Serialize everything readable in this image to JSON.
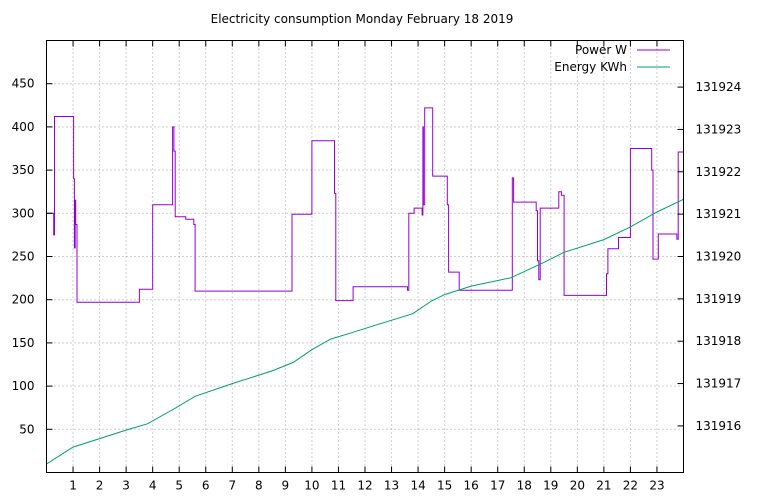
{
  "chart_data": {
    "type": "line",
    "title": "Electricity consumption Monday February 18 2019",
    "xlabel": "",
    "ylabel": "",
    "y2label": "",
    "xlim": [
      0,
      24
    ],
    "ylim": [
      0,
      500
    ],
    "y2lim": [
      131914.9,
      131925.1
    ],
    "x_ticks": [
      1,
      2,
      3,
      4,
      5,
      6,
      7,
      8,
      9,
      10,
      11,
      12,
      13,
      14,
      15,
      16,
      17,
      18,
      19,
      20,
      21,
      22,
      23
    ],
    "y_ticks": [
      50,
      100,
      150,
      200,
      250,
      300,
      350,
      400,
      450
    ],
    "y2_ticks": [
      131916,
      131917,
      131918,
      131919,
      131920,
      131921,
      131922,
      131923,
      131924
    ],
    "grid": true,
    "legend_position": "top-right",
    "series": [
      {
        "name": "Power W",
        "axis": "y",
        "color": "#9400d3",
        "step": true,
        "points": [
          [
            0,
            300
          ],
          [
            0.25,
            300
          ],
          [
            0.27,
            275
          ],
          [
            0.3,
            412
          ],
          [
            1.0,
            412
          ],
          [
            1.02,
            340
          ],
          [
            1.05,
            260
          ],
          [
            1.08,
            315
          ],
          [
            1.1,
            287
          ],
          [
            1.15,
            197
          ],
          [
            3.45,
            197
          ],
          [
            3.5,
            212
          ],
          [
            3.95,
            212
          ],
          [
            4.0,
            310
          ],
          [
            4.7,
            310
          ],
          [
            4.75,
            400
          ],
          [
            4.8,
            372
          ],
          [
            4.85,
            296
          ],
          [
            5.2,
            296
          ],
          [
            5.25,
            293
          ],
          [
            5.5,
            293
          ],
          [
            5.55,
            287
          ],
          [
            5.6,
            210
          ],
          [
            9.15,
            210
          ],
          [
            9.25,
            299
          ],
          [
            9.9,
            299
          ],
          [
            10.0,
            384
          ],
          [
            10.8,
            384
          ],
          [
            10.85,
            323
          ],
          [
            10.9,
            199
          ],
          [
            11.5,
            199
          ],
          [
            11.55,
            215
          ],
          [
            13.55,
            215
          ],
          [
            13.6,
            211
          ],
          [
            13.65,
            300
          ],
          [
            13.8,
            300
          ],
          [
            13.85,
            306
          ],
          [
            14.1,
            306
          ],
          [
            14.15,
            298
          ],
          [
            14.18,
            400
          ],
          [
            14.2,
            310
          ],
          [
            14.25,
            422
          ],
          [
            14.5,
            422
          ],
          [
            14.55,
            343
          ],
          [
            15.05,
            343
          ],
          [
            15.1,
            310
          ],
          [
            15.15,
            232
          ],
          [
            15.5,
            232
          ],
          [
            15.55,
            211
          ],
          [
            17.5,
            211
          ],
          [
            17.55,
            341
          ],
          [
            17.6,
            313
          ],
          [
            18.4,
            313
          ],
          [
            18.45,
            303
          ],
          [
            18.5,
            245
          ],
          [
            18.55,
            223
          ],
          [
            18.6,
            306
          ],
          [
            19.25,
            306
          ],
          [
            19.3,
            325
          ],
          [
            19.4,
            321
          ],
          [
            19.5,
            205
          ],
          [
            21.05,
            205
          ],
          [
            21.1,
            230
          ],
          [
            21.15,
            259
          ],
          [
            21.5,
            259
          ],
          [
            21.55,
            272
          ],
          [
            21.95,
            272
          ],
          [
            22.0,
            375
          ],
          [
            22.75,
            375
          ],
          [
            22.8,
            350
          ],
          [
            22.85,
            247
          ],
          [
            23.0,
            247
          ],
          [
            23.05,
            276
          ],
          [
            23.7,
            276
          ],
          [
            23.75,
            270
          ],
          [
            23.8,
            371
          ],
          [
            24,
            371
          ]
        ]
      },
      {
        "name": "Energy KWh",
        "axis": "y2",
        "color": "#009e73",
        "step": false,
        "points": [
          [
            0,
            131915.1
          ],
          [
            0.5,
            131915.3
          ],
          [
            1.0,
            131915.5
          ],
          [
            2.0,
            131915.7
          ],
          [
            3.0,
            131915.9
          ],
          [
            3.8,
            131916.05
          ],
          [
            4.8,
            131916.4
          ],
          [
            5.6,
            131916.7
          ],
          [
            7.0,
            131917.0
          ],
          [
            8.5,
            131917.3
          ],
          [
            9.3,
            131917.5
          ],
          [
            10.0,
            131917.8
          ],
          [
            10.7,
            131918.05
          ],
          [
            11.5,
            131918.2
          ],
          [
            12.5,
            131918.4
          ],
          [
            13.8,
            131918.65
          ],
          [
            14.5,
            131918.95
          ],
          [
            15.0,
            131919.1
          ],
          [
            16.0,
            131919.3
          ],
          [
            17.5,
            131919.5
          ],
          [
            18.7,
            131919.85
          ],
          [
            19.5,
            131920.1
          ],
          [
            21.0,
            131920.4
          ],
          [
            22.0,
            131920.7
          ],
          [
            23.0,
            131921.05
          ],
          [
            24.0,
            131921.35
          ]
        ]
      }
    ]
  }
}
